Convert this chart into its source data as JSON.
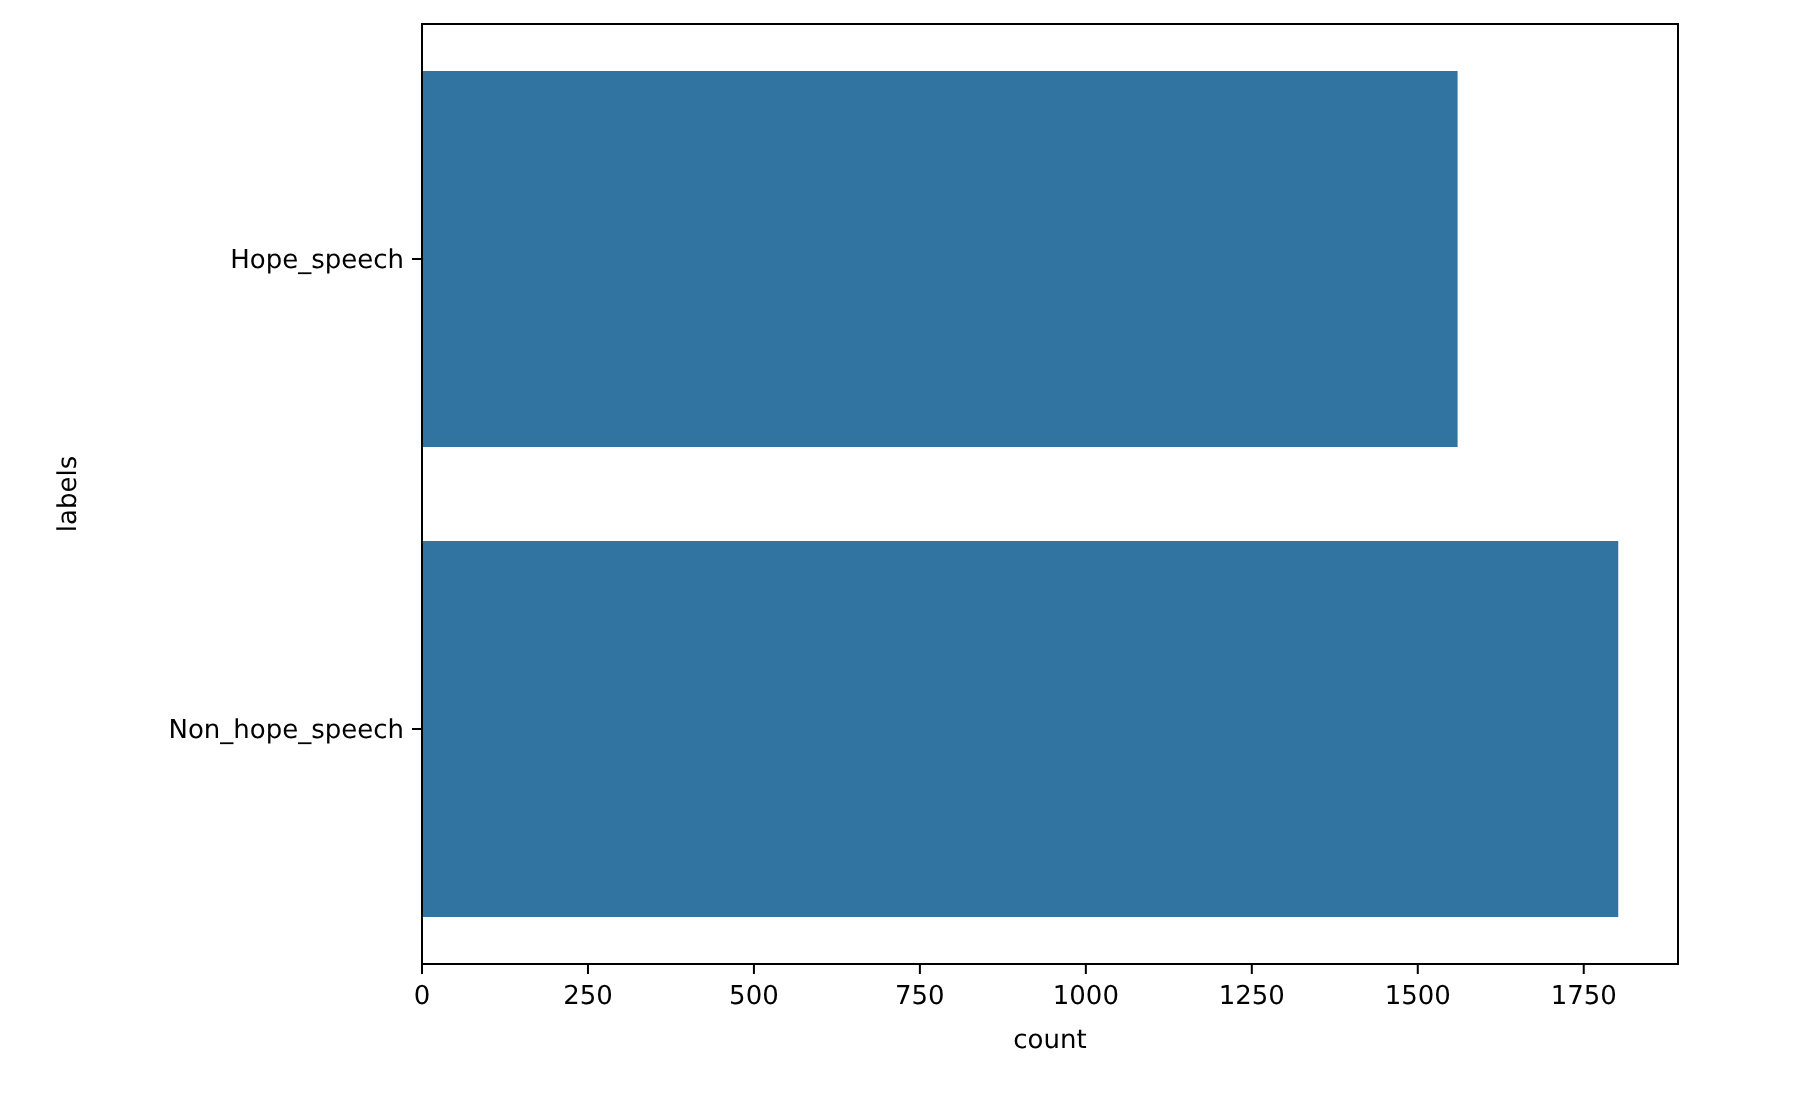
{
  "chart_data": {
    "type": "bar",
    "orientation": "horizontal",
    "xlabel": "count",
    "ylabel": "labels",
    "categories": [
      "Hope_speech",
      "Non_hope_speech"
    ],
    "values": [
      1560,
      1802
    ],
    "color": "#3274a1",
    "xlim": [
      0,
      1892
    ],
    "xticks": [
      0,
      250,
      500,
      750,
      1000,
      1250,
      1500,
      1750
    ],
    "grid": false
  }
}
